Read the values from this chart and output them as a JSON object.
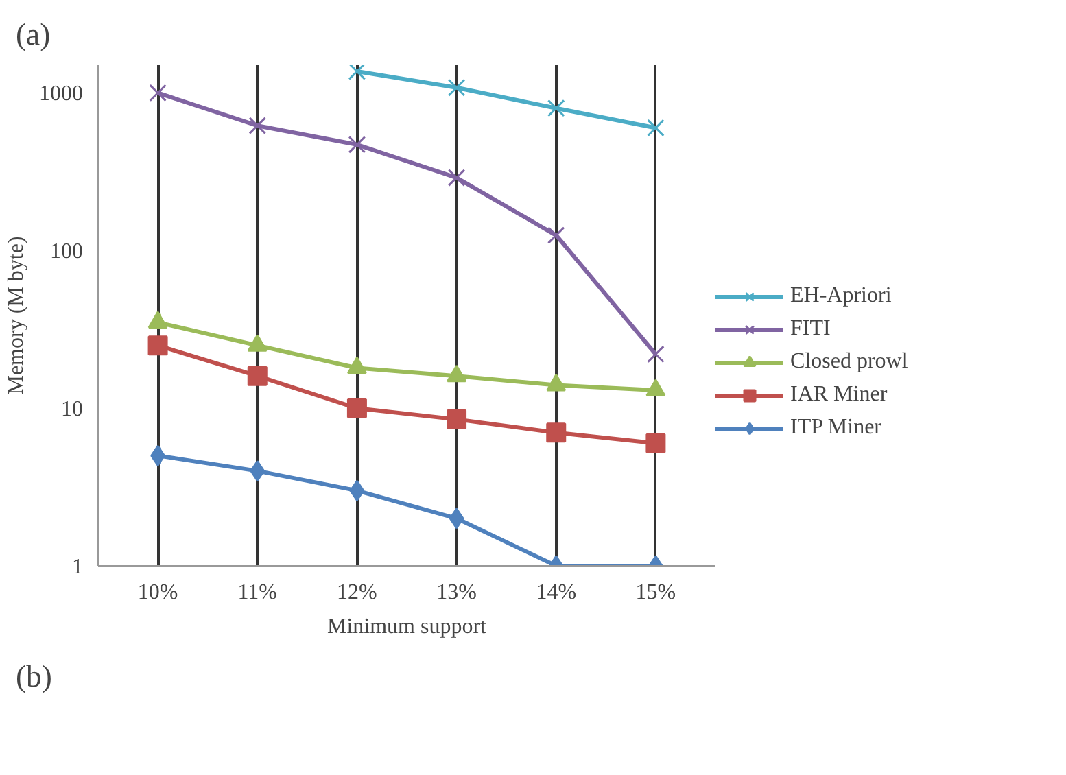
{
  "chart_data": {
    "type": "line",
    "xlabel": "Minimum support",
    "ylabel": "Memory (M byte)",
    "categories": [
      "10%",
      "11%",
      "12%",
      "13%",
      "14%",
      "15%"
    ],
    "log": "y",
    "ylim": [
      1,
      1500
    ],
    "yticks": [
      1,
      10,
      100,
      1000
    ],
    "grid": "x",
    "legend": "right",
    "annotations": [
      "(a)",
      "(b)"
    ],
    "series": [
      {
        "name": "EH-Apriori",
        "color": "#4bacc6",
        "marker": "cross",
        "values": [
          null,
          null,
          1370,
          1080,
          800,
          600
        ]
      },
      {
        "name": "FITI",
        "color": "#8064a2",
        "marker": "cross",
        "values": [
          1000,
          620,
          470,
          290,
          125,
          22
        ]
      },
      {
        "name": "Closed prowl",
        "color": "#9bbb59",
        "marker": "triangle",
        "values": [
          35,
          25,
          18,
          16,
          14,
          13
        ]
      },
      {
        "name": "IAR Miner",
        "color": "#c0504d",
        "marker": "square",
        "values": [
          25,
          16,
          10,
          8.5,
          7,
          6
        ]
      },
      {
        "name": "ITP Miner",
        "color": "#4f81bd",
        "marker": "diamond",
        "values": [
          5,
          4,
          3,
          2,
          1,
          1
        ]
      }
    ]
  }
}
